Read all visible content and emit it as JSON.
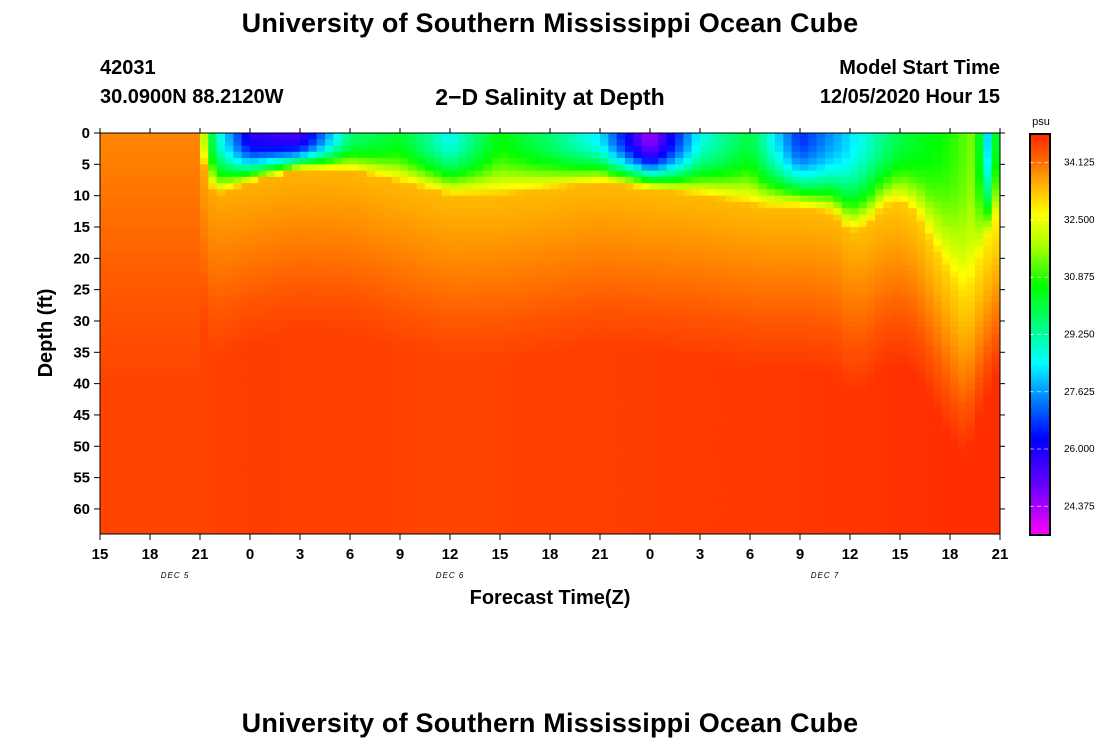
{
  "header": {
    "title": "University of Southern Mississippi Ocean Cube",
    "station_id": "42031",
    "location": "30.0900N 88.2120W",
    "subtitle": "2−D Salinity at Depth",
    "model_label": "Model Start Time",
    "model_time": "12/05/2020 Hour 15",
    "footer_title": "University of Southern Mississippi Ocean Cube"
  },
  "chart_data": {
    "type": "heatmap",
    "title": "2−D Salinity at Depth",
    "xlabel": "Forecast Time(Z)",
    "ylabel": "Depth (ft)",
    "x_unit": "forecast hour (UTC), starting 12/05/2020 Hour 15",
    "xlim": [
      15,
      69
    ],
    "x_tick_values": [
      15,
      18,
      21,
      24,
      27,
      30,
      33,
      36,
      39,
      42,
      45,
      48,
      51,
      54,
      57,
      60,
      63,
      66,
      69
    ],
    "x_tick_labels": [
      "15",
      "18",
      "21",
      "0",
      "3",
      "6",
      "9",
      "12",
      "15",
      "18",
      "21",
      "0",
      "3",
      "6",
      "9",
      "12",
      "15",
      "18",
      "21"
    ],
    "date_labels": [
      {
        "x": 19.5,
        "label": "DEC 5"
      },
      {
        "x": 36,
        "label": "DEC 6"
      },
      {
        "x": 58.5,
        "label": "DEC 7"
      }
    ],
    "ylim": [
      0,
      64
    ],
    "y_reversed": true,
    "y_ticks": [
      0,
      5,
      10,
      15,
      20,
      25,
      30,
      35,
      40,
      45,
      50,
      55,
      60
    ],
    "colorbar": {
      "unit": "psu",
      "min": 23.56,
      "max": 34.94,
      "tick_values": [
        34.125,
        32.5,
        30.875,
        29.25,
        27.625,
        26.0,
        24.375
      ],
      "tick_labels": [
        "34.125",
        "32.500",
        "30.875",
        "29.250",
        "27.625",
        "26.000",
        "24.375"
      ]
    },
    "halocline_depth_ft": {
      "x": [
        15,
        20.9,
        21.4,
        22,
        24,
        27,
        30,
        33,
        36,
        39,
        42,
        45,
        48,
        51,
        53,
        55,
        57,
        59,
        60,
        61,
        62,
        63,
        64,
        65,
        66,
        67,
        68,
        69
      ],
      "depth": [
        0,
        0,
        8,
        10,
        8,
        6,
        6,
        8,
        10,
        10,
        9,
        8,
        9,
        10,
        11,
        12,
        12,
        13,
        16,
        15,
        12,
        11,
        13,
        18,
        23,
        26,
        18,
        12
      ]
    },
    "surface_salinity_psu": {
      "x": [
        15,
        20.9,
        21.4,
        22,
        24,
        27,
        30,
        33,
        36,
        39,
        42,
        45,
        48,
        51,
        54,
        57,
        60,
        63,
        66,
        67.5,
        68.3,
        69
      ],
      "values": [
        33.9,
        33.9,
        31.2,
        29.0,
        25.8,
        25.4,
        29.6,
        30.3,
        28.5,
        30.6,
        29.6,
        28.3,
        24.3,
        28.6,
        30.1,
        26.6,
        28.2,
        30.0,
        30.8,
        31.5,
        28.0,
        31.5
      ]
    },
    "deep_salinity_psu": {
      "x": [
        15,
        21,
        24,
        36,
        48,
        60,
        66,
        69
      ],
      "surface_layer_shallow": [
        33.9,
        33.9,
        33.8,
        33.7,
        33.7,
        33.7,
        33.4,
        33.0
      ],
      "bottom": [
        34.6,
        34.6,
        34.7,
        34.6,
        34.7,
        34.8,
        34.9,
        34.9
      ]
    }
  }
}
